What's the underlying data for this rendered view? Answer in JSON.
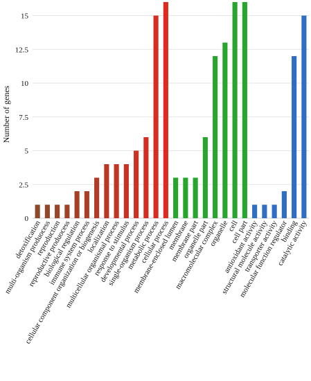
{
  "chart_data": {
    "type": "bar",
    "title": "",
    "xlabel": "",
    "ylabel": "Number of genes",
    "ylim": [
      0,
      16
    ],
    "yticks": [
      "0",
      "2.5",
      "5",
      "7.5",
      "10",
      "12.5",
      "15"
    ],
    "grid": true,
    "legend": "none",
    "categories": [
      "detoxification",
      "multi-organism produocess",
      "reproduction",
      "reproductive produocess",
      "biological regulation",
      "immune system process",
      "cellular component organization or biogenesis",
      "localization",
      "multicellular organismal process",
      "response to stimulus",
      "developmental process",
      "single-organism process",
      "metabolic process",
      "cellular process",
      "membrane-enclosed lumen",
      "membrane",
      "membrane part",
      "organelle part",
      "macromolecular complex",
      "organelle",
      "cell",
      "cell part",
      "antioxidant activity",
      "structural molecule activity",
      "transporter activity",
      "molecular function regulator",
      "binding",
      "catalytic activity"
    ],
    "values": [
      1,
      1,
      1,
      1,
      2,
      2,
      3,
      4,
      4,
      4,
      5,
      6,
      15,
      16,
      3,
      3,
      3,
      6,
      12,
      13,
      16,
      16,
      1,
      1,
      1,
      2,
      12,
      15
    ],
    "groups": [
      {
        "start": 0,
        "end": 13,
        "color": "#9e3a26",
        "gradient": [
          "#8b4a2b",
          "#e0291f"
        ]
      },
      {
        "start": 14,
        "end": 21,
        "color": "#27a52c"
      },
      {
        "start": 22,
        "end": 27,
        "color": "#2f6ec2"
      }
    ]
  }
}
